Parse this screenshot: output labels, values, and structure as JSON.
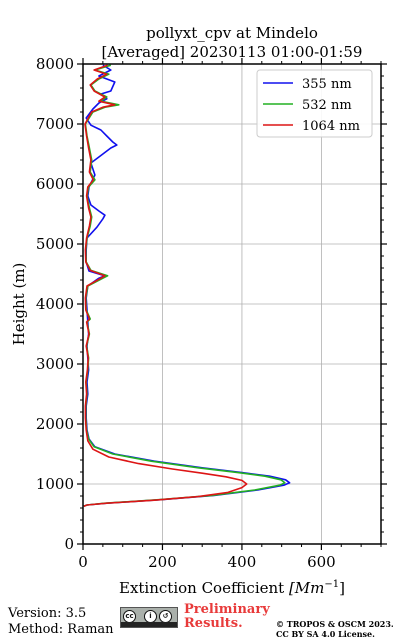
{
  "chart_data": {
    "type": "line",
    "title": "pollyxt_cpv at Mindelo",
    "subtitle": "[Averaged] 20230113 01:00-01:59",
    "xlabel": "Extinction Coefficient [Mm^-1]",
    "xlabel_main": "Extinction Coefficient ",
    "xlabel_unit": "[Mm",
    "xlabel_exp": "−1",
    "xlabel_close": "]",
    "ylabel": "Height (m)",
    "xlim": [
      0,
      750
    ],
    "ylim": [
      0,
      8000
    ],
    "x_ticks": [
      0,
      200,
      400,
      600
    ],
    "y_ticks": [
      0,
      1000,
      2000,
      3000,
      4000,
      5000,
      6000,
      7000,
      8000
    ],
    "grid": true,
    "legend_position": "top-right",
    "series": [
      {
        "name": "355 nm",
        "color": "#1010ee",
        "points": [
          [
            2,
            630
          ],
          [
            10,
            650
          ],
          [
            60,
            680
          ],
          [
            200,
            740
          ],
          [
            330,
            810
          ],
          [
            440,
            900
          ],
          [
            505,
            980
          ],
          [
            520,
            1020
          ],
          [
            510,
            1070
          ],
          [
            470,
            1130
          ],
          [
            400,
            1190
          ],
          [
            300,
            1270
          ],
          [
            180,
            1380
          ],
          [
            80,
            1500
          ],
          [
            30,
            1620
          ],
          [
            15,
            1750
          ],
          [
            10,
            1900
          ],
          [
            8,
            2100
          ],
          [
            8,
            2300
          ],
          [
            12,
            2500
          ],
          [
            10,
            2700
          ],
          [
            14,
            2900
          ],
          [
            12,
            3100
          ],
          [
            10,
            3300
          ],
          [
            14,
            3500
          ],
          [
            12,
            3700
          ],
          [
            10,
            3900
          ],
          [
            8,
            4100
          ],
          [
            12,
            4300
          ],
          [
            40,
            4430
          ],
          [
            55,
            4470
          ],
          [
            15,
            4550
          ],
          [
            8,
            4700
          ],
          [
            8,
            4900
          ],
          [
            10,
            5100
          ],
          [
            35,
            5280
          ],
          [
            50,
            5420
          ],
          [
            55,
            5480
          ],
          [
            40,
            5550
          ],
          [
            20,
            5650
          ],
          [
            12,
            5800
          ],
          [
            15,
            5950
          ],
          [
            30,
            6150
          ],
          [
            20,
            6350
          ],
          [
            40,
            6450
          ],
          [
            70,
            6600
          ],
          [
            85,
            6650
          ],
          [
            75,
            6700
          ],
          [
            60,
            6800
          ],
          [
            45,
            6900
          ],
          [
            20,
            6980
          ],
          [
            8,
            7100
          ],
          [
            25,
            7250
          ],
          [
            40,
            7350
          ],
          [
            60,
            7420
          ],
          [
            45,
            7500
          ],
          [
            70,
            7550
          ],
          [
            80,
            7700
          ],
          [
            40,
            7800
          ],
          [
            70,
            7900
          ],
          [
            50,
            7980
          ]
        ]
      },
      {
        "name": "532 nm",
        "color": "#22b022",
        "points": [
          [
            2,
            630
          ],
          [
            10,
            650
          ],
          [
            55,
            680
          ],
          [
            195,
            740
          ],
          [
            325,
            810
          ],
          [
            432,
            900
          ],
          [
            495,
            980
          ],
          [
            508,
            1020
          ],
          [
            498,
            1070
          ],
          [
            458,
            1130
          ],
          [
            390,
            1190
          ],
          [
            290,
            1270
          ],
          [
            172,
            1380
          ],
          [
            75,
            1500
          ],
          [
            28,
            1620
          ],
          [
            14,
            1750
          ],
          [
            9,
            1900
          ],
          [
            7,
            2100
          ],
          [
            7,
            2300
          ],
          [
            10,
            2500
          ],
          [
            8,
            2700
          ],
          [
            12,
            2900
          ],
          [
            14,
            3100
          ],
          [
            9,
            3300
          ],
          [
            16,
            3500
          ],
          [
            10,
            3700
          ],
          [
            18,
            3750
          ],
          [
            8,
            3900
          ],
          [
            7,
            4100
          ],
          [
            12,
            4300
          ],
          [
            50,
            4430
          ],
          [
            62,
            4470
          ],
          [
            20,
            4560
          ],
          [
            8,
            4700
          ],
          [
            7,
            4900
          ],
          [
            10,
            5100
          ],
          [
            18,
            5300
          ],
          [
            22,
            5450
          ],
          [
            16,
            5600
          ],
          [
            10,
            5800
          ],
          [
            14,
            5950
          ],
          [
            30,
            6070
          ],
          [
            18,
            6200
          ],
          [
            22,
            6400
          ],
          [
            16,
            6600
          ],
          [
            10,
            6800
          ],
          [
            6,
            7000
          ],
          [
            25,
            7200
          ],
          [
            55,
            7280
          ],
          [
            90,
            7320
          ],
          [
            45,
            7380
          ],
          [
            60,
            7450
          ],
          [
            30,
            7550
          ],
          [
            20,
            7650
          ],
          [
            40,
            7750
          ],
          [
            65,
            7830
          ],
          [
            30,
            7900
          ],
          [
            70,
            7980
          ]
        ]
      },
      {
        "name": "1064 nm",
        "color": "#dd1515",
        "points": [
          [
            2,
            630
          ],
          [
            10,
            650
          ],
          [
            60,
            680
          ],
          [
            180,
            730
          ],
          [
            290,
            790
          ],
          [
            365,
            860
          ],
          [
            400,
            940
          ],
          [
            412,
            1000
          ],
          [
            400,
            1060
          ],
          [
            360,
            1120
          ],
          [
            300,
            1180
          ],
          [
            225,
            1250
          ],
          [
            140,
            1340
          ],
          [
            65,
            1450
          ],
          [
            25,
            1580
          ],
          [
            12,
            1720
          ],
          [
            8,
            1900
          ],
          [
            6,
            2100
          ],
          [
            6,
            2300
          ],
          [
            9,
            2500
          ],
          [
            7,
            2700
          ],
          [
            11,
            2900
          ],
          [
            13,
            3100
          ],
          [
            8,
            3300
          ],
          [
            15,
            3500
          ],
          [
            9,
            3700
          ],
          [
            16,
            3750
          ],
          [
            7,
            3900
          ],
          [
            6,
            4100
          ],
          [
            10,
            4300
          ],
          [
            45,
            4430
          ],
          [
            55,
            4470
          ],
          [
            18,
            4560
          ],
          [
            7,
            4700
          ],
          [
            6,
            4900
          ],
          [
            9,
            5100
          ],
          [
            16,
            5300
          ],
          [
            20,
            5450
          ],
          [
            14,
            5600
          ],
          [
            9,
            5800
          ],
          [
            12,
            5950
          ],
          [
            26,
            6070
          ],
          [
            16,
            6200
          ],
          [
            20,
            6400
          ],
          [
            14,
            6600
          ],
          [
            9,
            6800
          ],
          [
            5,
            7000
          ],
          [
            22,
            7200
          ],
          [
            50,
            7280
          ],
          [
            80,
            7320
          ],
          [
            40,
            7380
          ],
          [
            55,
            7450
          ],
          [
            28,
            7550
          ],
          [
            18,
            7650
          ],
          [
            36,
            7750
          ],
          [
            60,
            7830
          ],
          [
            28,
            7900
          ],
          [
            62,
            7980
          ]
        ]
      }
    ]
  },
  "footer": {
    "version": "Version: 3.5",
    "method": "Method: Raman",
    "license_badge": "BY SA",
    "preliminary_line1": "Preliminary",
    "preliminary_line2": "Results.",
    "copyright_line1": "© TROPOS & OSCM 2023.",
    "copyright_line2": "CC BY SA 4.0 License."
  }
}
